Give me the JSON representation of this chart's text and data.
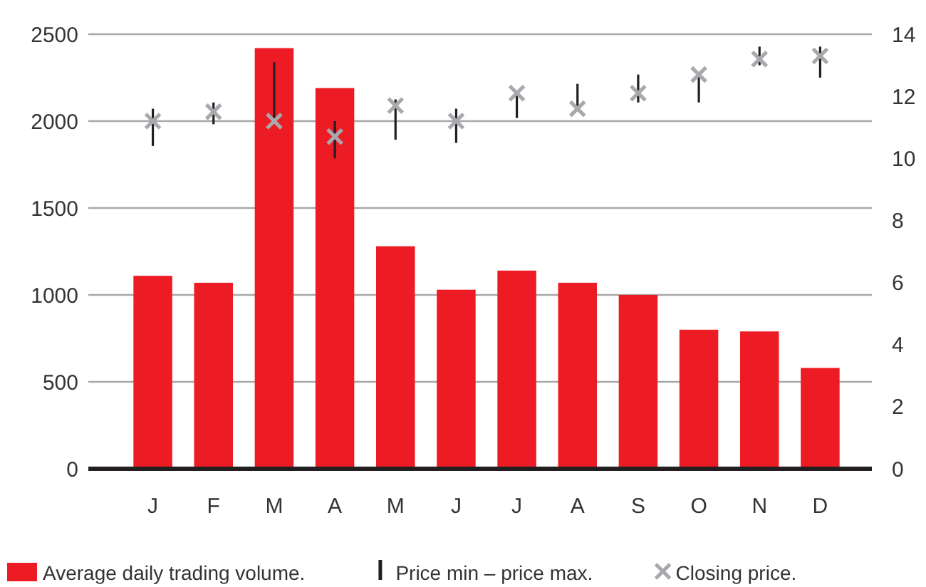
{
  "chart_data": {
    "type": "bar",
    "categories": [
      "J",
      "F",
      "M",
      "A",
      "M",
      "J",
      "J",
      "A",
      "S",
      "O",
      "N",
      "D"
    ],
    "series": [
      {
        "name": "Average daily trading volume.",
        "color": "#ed1c24",
        "values": [
          1110,
          1070,
          2420,
          2190,
          1280,
          1030,
          1140,
          1070,
          1000,
          800,
          790,
          580
        ]
      },
      {
        "name": "Price min – price max.",
        "axis": "y2",
        "color": "#231f20",
        "base": [
          10.4,
          11.1,
          11.2,
          10.0,
          10.6,
          10.5,
          11.3,
          11.6,
          11.8,
          11.8,
          13.0,
          12.6
        ],
        "values": [
          1.2,
          0.7,
          1.9,
          1.2,
          1.3,
          1.1,
          0.8,
          0.8,
          0.9,
          0.9,
          0.6,
          1.0
        ]
      },
      {
        "name": "Closing price.",
        "type": "scatter",
        "axis": "y2",
        "marker": "cross",
        "color": "#a7a9ac",
        "values": [
          11.2,
          11.5,
          11.2,
          10.7,
          11.7,
          11.2,
          12.1,
          11.6,
          12.1,
          12.7,
          13.2,
          13.3
        ]
      }
    ],
    "ylim": [
      0,
      2500
    ],
    "yticks": [
      0,
      500,
      1000,
      1500,
      2000,
      2500
    ],
    "y2lim": [
      0,
      14
    ],
    "y2ticks": [
      0,
      2,
      4,
      6,
      8,
      10,
      12,
      14
    ],
    "grid": "y",
    "legend": "bottom"
  }
}
